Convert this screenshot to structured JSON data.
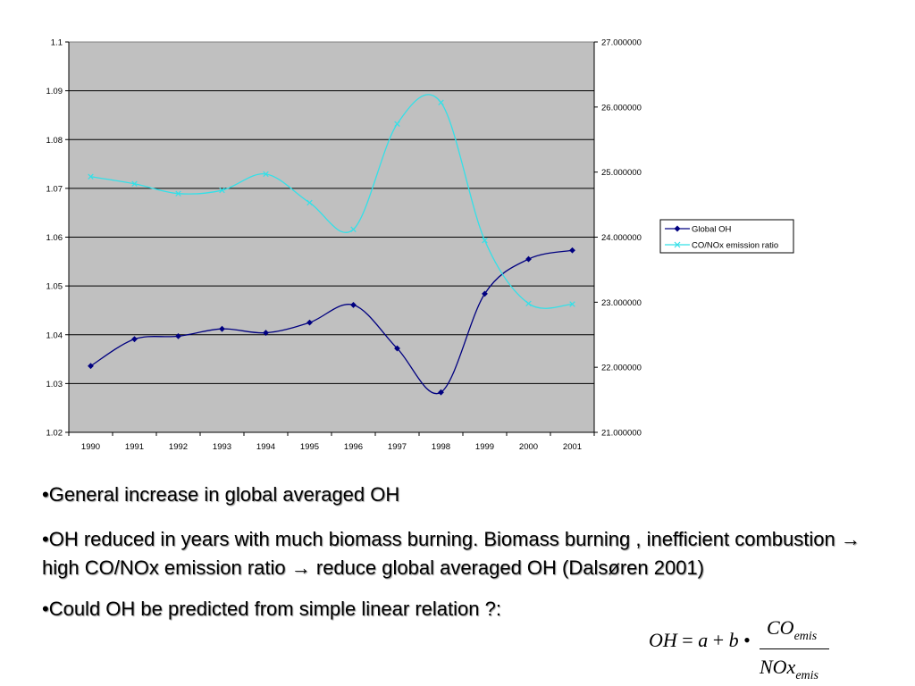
{
  "chart_data": {
    "type": "line",
    "categories": [
      "1990",
      "1991",
      "1992",
      "1993",
      "1994",
      "1995",
      "1996",
      "1997",
      "1998",
      "1999",
      "2000",
      "2001"
    ],
    "series": [
      {
        "name": "Global OH",
        "axis": "left",
        "color": "#000080",
        "marker": "diamond",
        "values": [
          1.0336,
          1.0391,
          1.0397,
          1.0412,
          1.0404,
          1.0425,
          1.0461,
          1.0372,
          1.0282,
          1.0484,
          1.0555,
          1.0573
        ]
      },
      {
        "name": "CO/NOx emission ratio",
        "axis": "right",
        "color": "#33e0e8",
        "marker": "x",
        "values": [
          24.93,
          24.82,
          24.67,
          24.72,
          24.97,
          24.53,
          24.12,
          25.74,
          26.07,
          23.95,
          22.98,
          22.97
        ]
      }
    ],
    "y_left": {
      "min": 1.02,
      "max": 1.1,
      "step": 0.01,
      "ticks": [
        "1.02",
        "1.03",
        "1.04",
        "1.05",
        "1.06",
        "1.07",
        "1.08",
        "1.09",
        "1.1"
      ]
    },
    "y_right": {
      "min": 21,
      "max": 27,
      "step": 1,
      "ticks": [
        "21.000000",
        "22.000000",
        "23.000000",
        "24.000000",
        "25.000000",
        "26.000000",
        "27.000000"
      ]
    },
    "grid": true,
    "plot_background": "#c0c0c0",
    "legend_position": "right",
    "title": "",
    "xlabel": "",
    "ylabel": ""
  },
  "bullets": [
    "•General increase in global averaged OH",
    "•OH reduced in years with much biomass burning.  Biomass burning , inefficient combustion → high CO/NOx emission ratio → reduce global averaged OH (Dalsøren 2001)",
    "•Could OH be predicted from simple linear relation ?:"
  ],
  "formula": {
    "lhs": "OH",
    "eq": "=",
    "a": "a",
    "plus": "+",
    "b": "b",
    "dot": "•",
    "num_main": "CO",
    "num_sub": "emis",
    "den_main": "NOx",
    "den_sub": "emis"
  }
}
